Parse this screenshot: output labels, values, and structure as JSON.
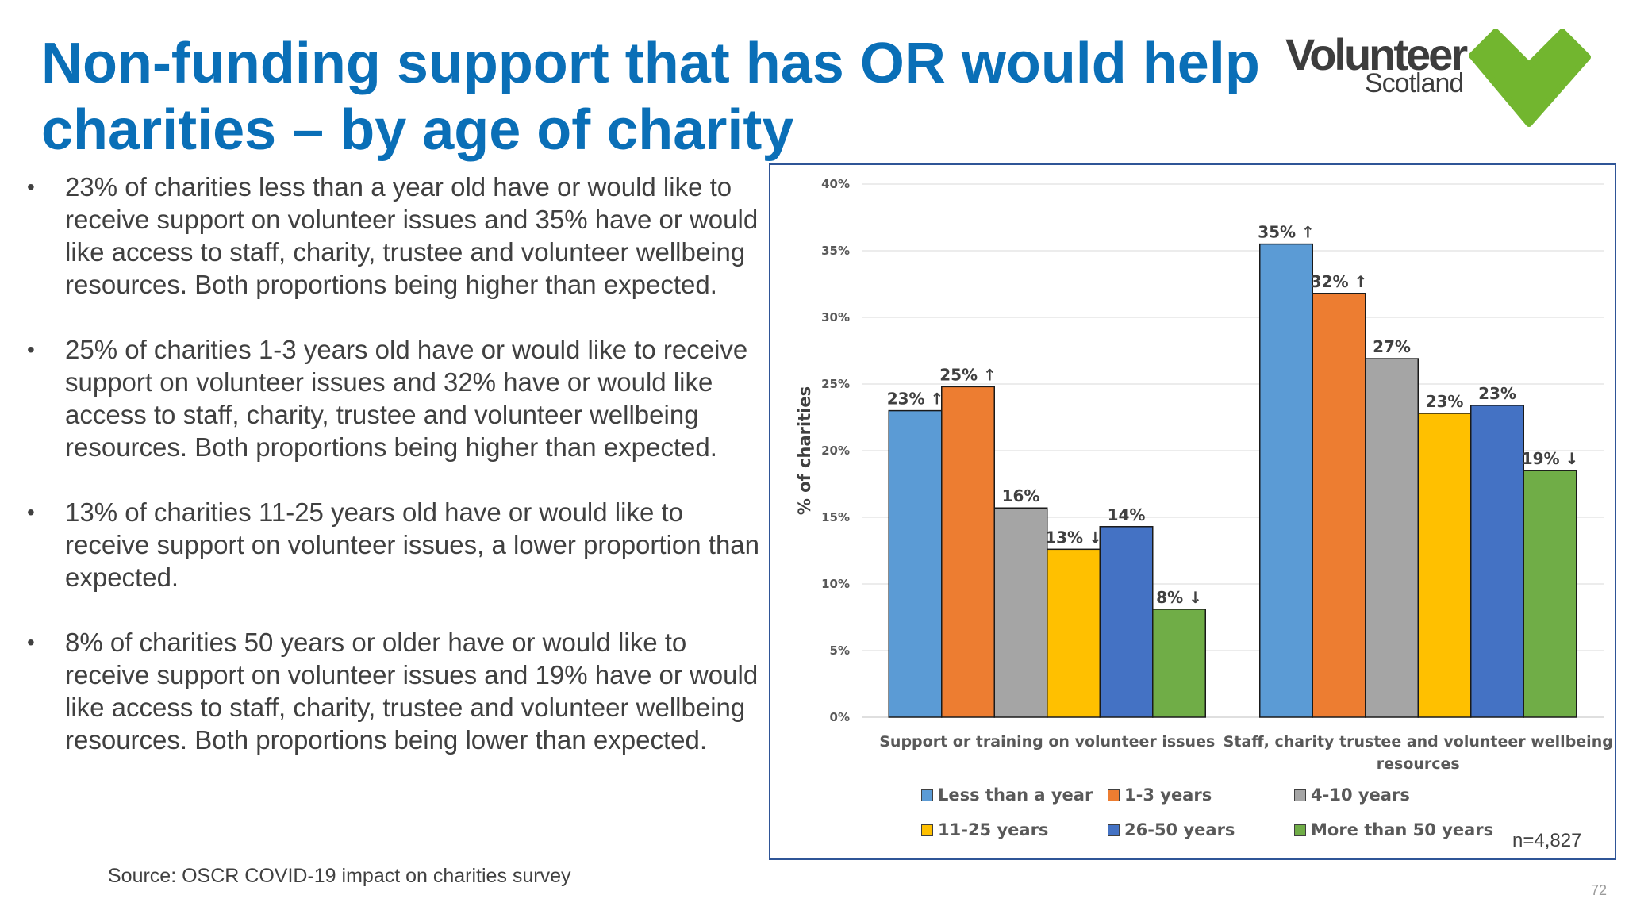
{
  "title": "Non-funding support that has OR would help charities – by age of charity",
  "logo": {
    "line1": "Volunteer",
    "line2": "Scotland",
    "heart_color": "#72b62f"
  },
  "bullets": [
    "23% of charities less than a year old have or would like to receive support on volunteer issues and 35% have or would like access to staff, charity, trustee and volunteer wellbeing resources. Both proportions being higher than expected.",
    "25% of charities 1-3 years old have or would like to receive support on volunteer issues and 32% have or would like access to staff, charity, trustee and volunteer wellbeing resources. Both proportions being higher than expected.",
    "13% of charities 11-25 years old have or would like to receive support on volunteer issues, a lower proportion than expected.",
    "8% of charities 50 years or older have or would like to receive support on volunteer issues and 19% have or would like access to staff, charity, trustee and volunteer wellbeing resources. Both proportions being lower  than expected."
  ],
  "bullet_char": "•",
  "source": "Source: OSCR COVID-19 impact on charities survey",
  "page_number": "72",
  "sample_size": "n=4,827",
  "chart_data": {
    "type": "bar",
    "ylabel": "% of charities",
    "ylim": [
      0,
      40
    ],
    "y_ticks": [
      "0%",
      "5%",
      "10%",
      "15%",
      "20%",
      "25%",
      "30%",
      "35%",
      "40%"
    ],
    "grid": true,
    "legend_position": "bottom",
    "categories": [
      "Support or training on volunteer issues",
      "Staff, charity trustee and volunteer wellbeing resources"
    ],
    "series": [
      {
        "name": "Less than a year",
        "color": "#5b9bd5",
        "values": [
          23,
          35.5
        ],
        "labels": [
          "23% ↑",
          "35% ↑"
        ]
      },
      {
        "name": "1-3 years",
        "color": "#ed7d31",
        "values": [
          24.8,
          31.8
        ],
        "labels": [
          "25% ↑",
          "32% ↑"
        ]
      },
      {
        "name": "4-10 years",
        "color": "#a5a5a5",
        "values": [
          15.7,
          26.9
        ],
        "labels": [
          "16%",
          "27%"
        ]
      },
      {
        "name": "11-25 years",
        "color": "#ffc000",
        "values": [
          12.6,
          22.8
        ],
        "labels": [
          "13% ↓",
          "23%"
        ]
      },
      {
        "name": "26-50 years",
        "color": "#4472c4",
        "values": [
          14.3,
          23.4
        ],
        "labels": [
          "14%",
          "23%"
        ]
      },
      {
        "name": "More than 50 years",
        "color": "#70ad47",
        "values": [
          8.1,
          18.5
        ],
        "labels": [
          "8% ↓",
          "19% ↓"
        ]
      }
    ]
  }
}
